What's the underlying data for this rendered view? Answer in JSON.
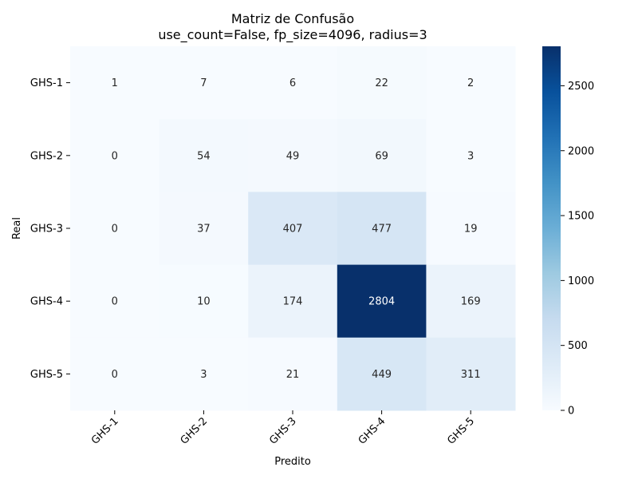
{
  "chart_data": {
    "type": "heatmap",
    "title": "Matriz de Confusão",
    "subtitle": "use_count=False, fp_size=4096, radius=3",
    "xlabel": "Predito",
    "ylabel": "Real",
    "x_categories": [
      "GHS-1",
      "GHS-2",
      "GHS-3",
      "GHS-4",
      "GHS-5"
    ],
    "y_categories": [
      "GHS-1",
      "GHS-2",
      "GHS-3",
      "GHS-4",
      "GHS-5"
    ],
    "values": [
      [
        1,
        7,
        6,
        22,
        2
      ],
      [
        0,
        54,
        49,
        69,
        3
      ],
      [
        0,
        37,
        407,
        477,
        19
      ],
      [
        0,
        10,
        174,
        2804,
        169
      ],
      [
        0,
        3,
        21,
        449,
        311
      ]
    ],
    "colorbar": {
      "range": [
        0,
        2804
      ],
      "ticks": [
        0,
        500,
        1000,
        1500,
        2000,
        2500
      ],
      "colormap": "Blues"
    }
  }
}
